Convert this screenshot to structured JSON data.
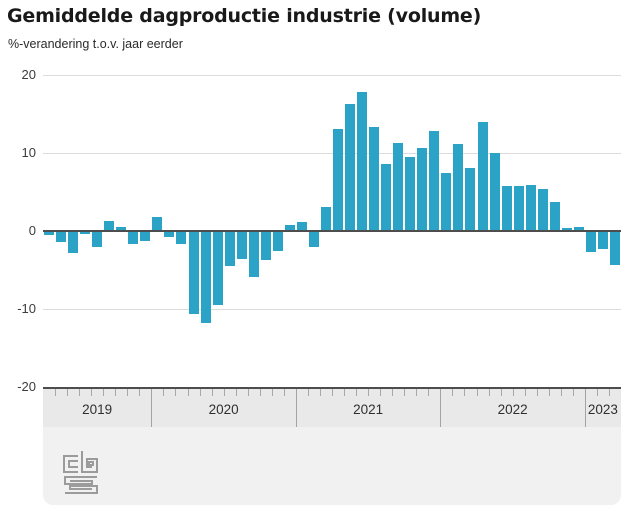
{
  "header": {
    "title": "Gemiddelde dagproductie industrie (volume)",
    "subtitle": "%-verandering t.o.v. jaar eerder"
  },
  "chart_data": {
    "type": "bar",
    "title": "Gemiddelde dagproductie industrie (volume)",
    "xlabel": "",
    "ylabel": "%-verandering t.o.v. jaar eerder",
    "ylim": [
      -20,
      20
    ],
    "yticks": [
      20,
      10,
      0,
      -10,
      -20
    ],
    "grid": true,
    "legend_position": "none",
    "bar_color": "#2aa3c6",
    "axis_years": [
      {
        "label": "2019",
        "months": 9
      },
      {
        "label": "2020",
        "months": 12
      },
      {
        "label": "2021",
        "months": 12
      },
      {
        "label": "2022",
        "months": 12
      },
      {
        "label": "2023",
        "months": 3
      }
    ],
    "x": [
      "2019-04",
      "2019-05",
      "2019-06",
      "2019-07",
      "2019-08",
      "2019-09",
      "2019-10",
      "2019-11",
      "2019-12",
      "2020-01",
      "2020-02",
      "2020-03",
      "2020-04",
      "2020-05",
      "2020-06",
      "2020-07",
      "2020-08",
      "2020-09",
      "2020-10",
      "2020-11",
      "2020-12",
      "2021-01",
      "2021-02",
      "2021-03",
      "2021-04",
      "2021-05",
      "2021-06",
      "2021-07",
      "2021-08",
      "2021-09",
      "2021-10",
      "2021-11",
      "2021-12",
      "2022-01",
      "2022-02",
      "2022-03",
      "2022-04",
      "2022-05",
      "2022-06",
      "2022-07",
      "2022-08",
      "2022-09",
      "2022-10",
      "2022-11",
      "2022-12",
      "2023-01",
      "2023-02",
      "2023-03"
    ],
    "values": [
      -0.4,
      -1.3,
      -2.7,
      -0.1,
      -1.9,
      1.1,
      0.4,
      -1.5,
      -1.1,
      1.7,
      -0.6,
      -1.6,
      -10.5,
      -11.7,
      -9.3,
      -4.3,
      -3.4,
      -5.8,
      -3.6,
      -2.4,
      0.6,
      1.0,
      -1.9,
      2.9,
      12.9,
      16.1,
      17.7,
      13.2,
      8.5,
      11.2,
      9.4,
      10.5,
      12.7,
      7.3,
      11.0,
      7.9,
      13.8,
      9.9,
      5.6,
      5.7,
      5.8,
      5.2,
      3.6,
      0.3,
      0.4,
      -2.5,
      -2.2,
      -4.2
    ]
  },
  "footer": {
    "logo": "cbs-logo"
  }
}
